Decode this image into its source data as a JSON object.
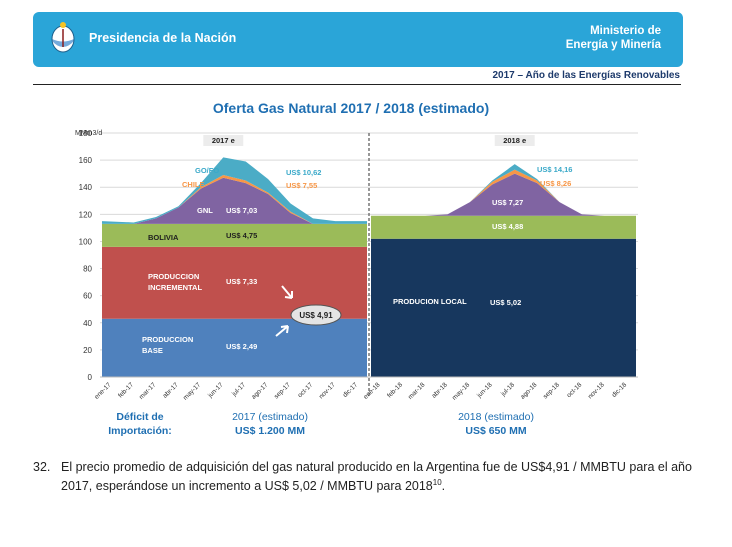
{
  "header": {
    "organization": "Presidencia de la Nación",
    "ministry_line1": "Ministerio de",
    "ministry_line2": "Energía y Minería",
    "slogan": "2017 – Año de las Energías Renovables"
  },
  "chart_data": {
    "type": "area",
    "title": "Oferta Gas Natural 2017 / 2018 (estimado)",
    "ylabel": "MMm3/d",
    "ylim": [
      0,
      180
    ],
    "yticks": [
      "0",
      "20",
      "40",
      "60",
      "80",
      "100",
      "120",
      "140",
      "160",
      "180"
    ],
    "x": [
      "ene-17",
      "feb-17",
      "mar-17",
      "abr-17",
      "may-17",
      "jun-17",
      "jul-17",
      "ago-17",
      "sep-17",
      "oct-17",
      "nov-17",
      "dic-17",
      "ene-18",
      "feb-18",
      "mar-18",
      "abr-18",
      "may-18",
      "jun-18",
      "jul-18",
      "ago-18",
      "sep-18",
      "oct-18",
      "nov-18",
      "dic-18"
    ],
    "period_labels": [
      "2017 e",
      "2018 e"
    ],
    "series_2017": [
      {
        "name": "PRODUCCION BASE",
        "color": "#4f81bd",
        "values": [
          43,
          43,
          43,
          43,
          43,
          43,
          43,
          43,
          43,
          43,
          43,
          43
        ]
      },
      {
        "name": "PRODUCCION INCREMENTAL",
        "color": "#c0504d",
        "values": [
          53,
          53,
          53,
          53,
          53,
          53,
          53,
          53,
          53,
          53,
          53,
          53
        ]
      },
      {
        "name": "BOLIVIA",
        "color": "#9bbb59",
        "values": [
          17,
          17,
          17,
          17,
          17,
          17,
          17,
          17,
          17,
          17,
          17,
          17
        ]
      },
      {
        "name": "GNL",
        "color": "#8064a2",
        "values": [
          0,
          0,
          4,
          12,
          26,
          34,
          30,
          22,
          8,
          0,
          0,
          0
        ]
      },
      {
        "name": "CHILE",
        "color": "#f79646",
        "values": [
          0,
          0,
          0,
          0,
          1,
          2,
          2,
          1,
          1,
          0,
          0,
          0
        ]
      },
      {
        "name": "GO/FO",
        "color": "#4bacc6",
        "values": [
          2,
          1,
          1,
          1,
          3,
          13,
          14,
          10,
          6,
          4,
          2,
          2
        ]
      }
    ],
    "series_2018": [
      {
        "name": "PRODUCION LOCAL",
        "color": "#17375e",
        "values": [
          102,
          102,
          102,
          102,
          102,
          102,
          102,
          102,
          102,
          102,
          102,
          102
        ]
      },
      {
        "name": "BOLIVIA",
        "color": "#9bbb59",
        "values": [
          17,
          17,
          17,
          17,
          17,
          17,
          17,
          17,
          17,
          17,
          17,
          17
        ]
      },
      {
        "name": "GNL",
        "color": "#8064a2",
        "values": [
          0,
          0,
          0,
          1,
          10,
          23,
          31,
          24,
          10,
          1,
          0,
          0
        ]
      },
      {
        "name": "CHILE",
        "color": "#f79646",
        "values": [
          0,
          0,
          0,
          0,
          0,
          2,
          3,
          2,
          0,
          0,
          0,
          0
        ]
      },
      {
        "name": "GO/FO",
        "color": "#4bacc6",
        "values": [
          0,
          0,
          0,
          0,
          0,
          1,
          4,
          1,
          0,
          0,
          0,
          0
        ]
      }
    ],
    "annotations_2017": {
      "gofo_label": "GO/FO",
      "chile_label": "CHILE",
      "gnl_label": "GNL",
      "gofo_price": "US$ 10,62",
      "chile_price": "US$ 7,55",
      "gnl_price": "US$ 7,03",
      "bolivia_label": "BOLIVIA",
      "bolivia_price": "US$ 4,75",
      "incremental_label_1": "PRODUCCION",
      "incremental_label_2": "INCREMENTAL",
      "incremental_price": "US$ 7,33",
      "base_label_1": "PRODUCCION",
      "base_label_2": "BASE",
      "base_price": "US$ 2,49",
      "average_price": "US$ 4,91"
    },
    "annotations_2018": {
      "gofo_price": "US$ 14,16",
      "chile_price": "US$ 8,26",
      "gnl_price": "US$ 7,27",
      "bolivia_price": "US$ 4,88",
      "local_label": "PRODUCION LOCAL",
      "local_price": "US$ 5,02"
    },
    "footer": {
      "deficit_line1": "Déficit de",
      "deficit_line2": "Importación:",
      "period_2017": "2017 (estimado)",
      "amount_2017": "US$ 1.200 MM",
      "period_2018": "2018 (estimado)",
      "amount_2018": "US$ 650 MM"
    }
  },
  "paragraph": {
    "number": "32.",
    "text": "El precio promedio de adquisición del gas natural producido en la Argentina fue de US$4,91 / MMBTU para el año 2017, esperándose un incremento a US$ 5,02 / MMBTU para 2018",
    "footnote": "10",
    "end": "."
  }
}
